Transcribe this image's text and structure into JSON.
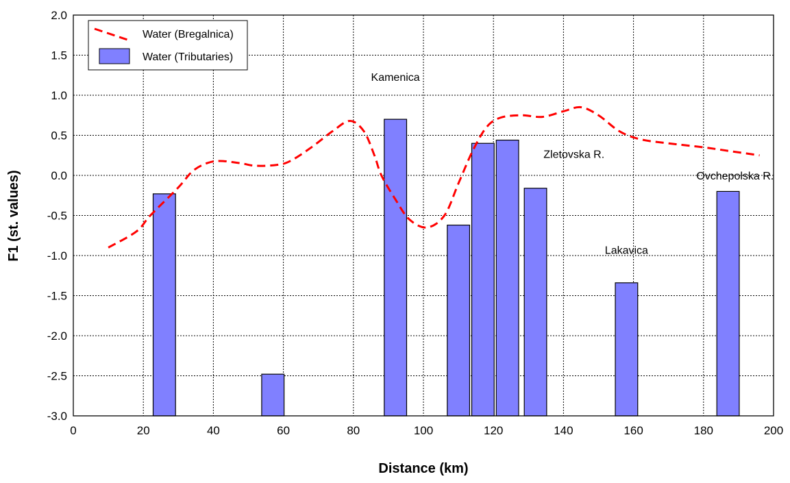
{
  "chart_data": {
    "type": "bar",
    "xlabel": "Distance (km)",
    "ylabel": "F1 (st. values)",
    "xlim": [
      0,
      200
    ],
    "ylim": [
      -3.0,
      2.0
    ],
    "x_ticks": [
      "0",
      "20",
      "40",
      "60",
      "80",
      "100",
      "120",
      "140",
      "160",
      "180",
      "200"
    ],
    "y_ticks": [
      "2.0",
      "1.5",
      "1.0",
      "0.5",
      "0.0",
      "-0.5",
      "-1.0",
      "-1.5",
      "-2.0",
      "-2.5",
      "-3.0"
    ],
    "grid": true,
    "legend_position": "top-left",
    "series": [
      {
        "name": "Water (Bregalnica)",
        "type": "line",
        "style": "dashed",
        "color": "#ff0000",
        "points": [
          [
            10,
            -0.9
          ],
          [
            18,
            -0.7
          ],
          [
            22,
            -0.5
          ],
          [
            30,
            -0.15
          ],
          [
            34,
            0.05
          ],
          [
            38,
            0.15
          ],
          [
            42,
            0.18
          ],
          [
            48,
            0.15
          ],
          [
            52,
            0.12
          ],
          [
            58,
            0.13
          ],
          [
            62,
            0.18
          ],
          [
            68,
            0.35
          ],
          [
            74,
            0.55
          ],
          [
            79,
            0.68
          ],
          [
            83,
            0.55
          ],
          [
            86,
            0.25
          ],
          [
            88,
            0.0
          ],
          [
            92,
            -0.3
          ],
          [
            96,
            -0.55
          ],
          [
            101,
            -0.65
          ],
          [
            106,
            -0.5
          ],
          [
            110,
            -0.1
          ],
          [
            114,
            0.3
          ],
          [
            118,
            0.6
          ],
          [
            122,
            0.72
          ],
          [
            128,
            0.75
          ],
          [
            134,
            0.73
          ],
          [
            140,
            0.8
          ],
          [
            145,
            0.85
          ],
          [
            150,
            0.75
          ],
          [
            156,
            0.55
          ],
          [
            162,
            0.45
          ],
          [
            170,
            0.4
          ],
          [
            180,
            0.35
          ],
          [
            188,
            0.3
          ],
          [
            196,
            0.25
          ]
        ]
      },
      {
        "name": "Water (Tributaries)",
        "type": "bar",
        "color": "#8080ff",
        "bars": [
          {
            "x": 26,
            "value": -0.23
          },
          {
            "x": 57,
            "value": -2.48
          },
          {
            "x": 92,
            "value": 0.7
          },
          {
            "x": 110,
            "value": -0.62
          },
          {
            "x": 117,
            "value": 0.4
          },
          {
            "x": 124,
            "value": 0.44
          },
          {
            "x": 132,
            "value": -0.16
          },
          {
            "x": 158,
            "value": -1.34
          },
          {
            "x": 187,
            "value": -0.2
          }
        ]
      }
    ],
    "annotations": [
      {
        "text": "Kamenica",
        "x": 92,
        "y": 1.18
      },
      {
        "text": "Zletovska R.",
        "x": 143,
        "y": 0.22
      },
      {
        "text": "Ovchepolska R.",
        "x": 189,
        "y": -0.05
      },
      {
        "text": "Lakavica",
        "x": 158,
        "y": -0.98
      }
    ],
    "bar_width_km": 6.4,
    "colors": {
      "line": "#ff0000",
      "bar_fill": "#8080ff",
      "bar_stroke": "#000000",
      "grid": "#000000"
    }
  }
}
